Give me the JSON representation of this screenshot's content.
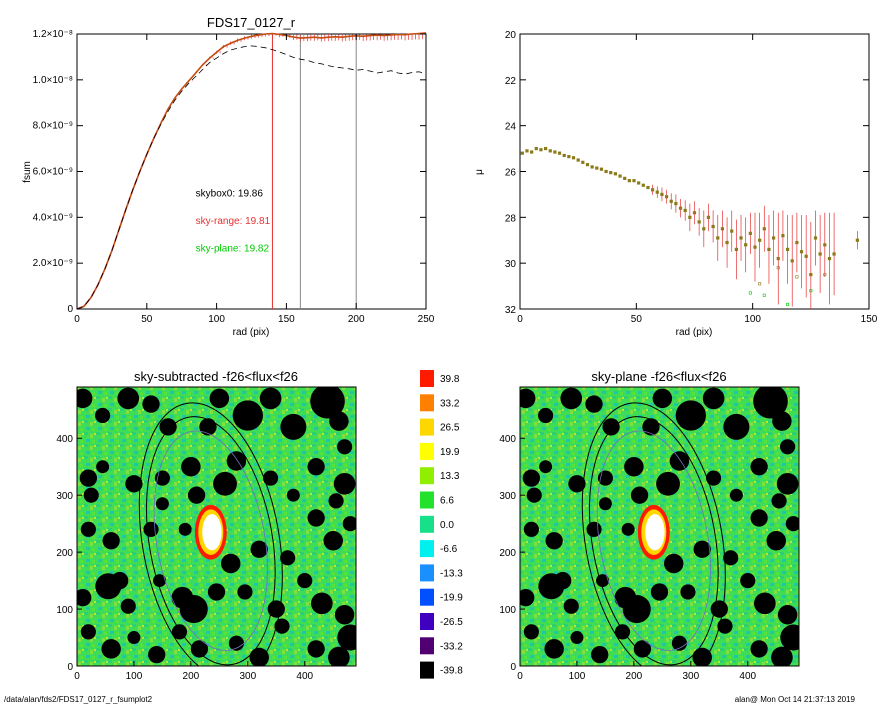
{
  "footer": {
    "left": "/data/alan/fds2/FDS17_0127_r_fsumplot2",
    "right": "alan@  Mon Oct 14 21:37:13 2019"
  },
  "colors": {
    "total": "#b45a00",
    "range": "#e53030",
    "plane": "#00cc00",
    "skybox": "#000000",
    "marker": "#8a7a1a"
  },
  "chart_data": [
    {
      "type": "line",
      "title": "FDS17_0127_r",
      "xlabel": "rad (pix)",
      "ylabel": "fsum",
      "xlim": [
        0,
        250
      ],
      "ylim": [
        0,
        1.2e-08
      ],
      "xticks": [
        0,
        50,
        100,
        150,
        200,
        250
      ],
      "yticks": [
        {
          "value": 0,
          "label": "0"
        },
        {
          "value": 2e-09,
          "label": "2.0×10⁻⁹"
        },
        {
          "value": 4e-09,
          "label": "4.0×10⁻⁹"
        },
        {
          "value": 6e-09,
          "label": "6.0×10⁻⁹"
        },
        {
          "value": 8e-09,
          "label": "8.0×10⁻⁹"
        },
        {
          "value": 1e-08,
          "label": "1.0×10⁻⁸"
        },
        {
          "value": 1.2e-08,
          "label": "1.2×10⁻⁸"
        }
      ],
      "vlines": [
        {
          "x": 140,
          "color": "#e53030"
        },
        {
          "x": 160,
          "color": "#888888"
        },
        {
          "x": 200,
          "color": "#888888"
        }
      ],
      "annotations": [
        {
          "text": "skybox0: 19.86",
          "color": "#000000",
          "x": 85,
          "y": 4.9e-09
        },
        {
          "text": "sky-range: 19.81",
          "color": "#e53030",
          "x": 85,
          "y": 3.7e-09
        },
        {
          "text": "sky-plane: 19.82",
          "color": "#00cc00",
          "x": 85,
          "y": 2.5e-09
        }
      ],
      "series": [
        {
          "x": [
            0,
            5,
            10,
            15,
            20,
            25,
            30,
            35,
            40,
            45,
            50,
            55,
            60,
            65,
            70,
            75,
            80,
            85,
            90,
            95,
            100,
            105,
            110,
            115,
            120,
            125,
            130,
            135,
            140,
            145,
            150,
            155,
            160,
            165,
            170,
            175,
            180,
            185,
            190,
            195,
            200,
            205,
            210,
            215,
            220,
            225,
            230,
            235,
            240,
            245,
            250
          ],
          "y": [
            0,
            1.2e-10,
            5e-10,
            1.05e-09,
            1.75e-09,
            2.55e-09,
            3.45e-09,
            4.35e-09,
            5.2e-09,
            6e-09,
            6.75e-09,
            7.45e-09,
            8.1e-09,
            8.7e-09,
            9.2e-09,
            9.6e-09,
            9.95e-09,
            1.03e-08,
            1.065e-08,
            1.095e-08,
            1.12e-08,
            1.145e-08,
            1.16e-08,
            1.172e-08,
            1.182e-08,
            1.19e-08,
            1.195e-08,
            1.2e-08,
            1.202e-08,
            1.198e-08,
            1.193e-08,
            1.187e-08,
            1.182e-08,
            1.184e-08,
            1.186e-08,
            1.183e-08,
            1.186e-08,
            1.188e-08,
            1.186e-08,
            1.19e-08,
            1.192e-08,
            1.19e-08,
            1.193e-08,
            1.195e-08,
            1.193e-08,
            1.196e-08,
            1.198e-08,
            1.197e-08,
            1.2e-08,
            1.202e-08,
            1.205e-08
          ],
          "style": "solid",
          "color": "#b45a00",
          "errors": true
        },
        {
          "x": [
            0,
            5,
            10,
            15,
            20,
            25,
            30,
            35,
            40,
            45,
            50,
            55,
            60,
            65,
            70,
            75,
            80,
            85,
            90,
            95,
            100,
            105,
            110,
            115,
            120,
            125,
            130,
            135,
            140,
            145,
            150,
            155,
            160,
            165,
            170,
            175,
            180,
            185,
            190,
            195,
            200,
            205,
            210,
            215,
            220,
            225,
            230,
            235,
            240,
            245,
            250
          ],
          "y": [
            0,
            1.2e-10,
            5e-10,
            1.05e-09,
            1.75e-09,
            2.55e-09,
            3.45e-09,
            4.35e-09,
            5.2e-09,
            6e-09,
            6.75e-09,
            7.45e-09,
            8.05e-09,
            8.6e-09,
            9.1e-09,
            9.5e-09,
            9.85e-09,
            1.015e-08,
            1.045e-08,
            1.075e-08,
            1.095e-08,
            1.115e-08,
            1.13e-08,
            1.138e-08,
            1.145e-08,
            1.148e-08,
            1.145e-08,
            1.14e-08,
            1.132e-08,
            1.122e-08,
            1.11e-08,
            1.098e-08,
            1.09e-08,
            1.085e-08,
            1.075e-08,
            1.07e-08,
            1.062e-08,
            1.055e-08,
            1.052e-08,
            1.048e-08,
            1.042e-08,
            1.045e-08,
            1.038e-08,
            1.03e-08,
            1.035e-08,
            1.04e-08,
            1.03e-08,
            1.025e-08,
            1.032e-08,
            1.035e-08,
            1.025e-08
          ],
          "style": "dashed",
          "color": "#000000",
          "errors": false
        }
      ]
    },
    {
      "type": "scatter",
      "title": "",
      "xlabel": "rad (pix)",
      "ylabel": "μ",
      "xlim": [
        0,
        150
      ],
      "ylim": [
        32,
        20
      ],
      "xticks": [
        0,
        50,
        100,
        150
      ],
      "yticks": [
        20,
        22,
        24,
        26,
        28,
        30,
        32
      ],
      "points": {
        "x": [
          1,
          3,
          5,
          7,
          9,
          11,
          13,
          15,
          17,
          19,
          21,
          23,
          25,
          27,
          29,
          31,
          33,
          35,
          37,
          39,
          41,
          43,
          45,
          47,
          49,
          51,
          53,
          55,
          57,
          59,
          61,
          63,
          65,
          67,
          69,
          71,
          73,
          75,
          77,
          79,
          81,
          83,
          85,
          87,
          89,
          91,
          93,
          95,
          97,
          99,
          101,
          103,
          105,
          107,
          109,
          111,
          113,
          115,
          117,
          119,
          121,
          123,
          125,
          127,
          129,
          131,
          133,
          135,
          145
        ],
        "y": [
          25.2,
          25.1,
          25.15,
          25.0,
          25.05,
          25.0,
          25.1,
          25.15,
          25.2,
          25.3,
          25.35,
          25.4,
          25.5,
          25.6,
          25.7,
          25.8,
          25.85,
          25.9,
          26.0,
          26.05,
          26.1,
          26.2,
          26.3,
          26.4,
          26.4,
          26.5,
          26.6,
          26.7,
          26.8,
          26.9,
          27.0,
          27.1,
          27.3,
          27.4,
          27.6,
          27.7,
          28.0,
          27.8,
          28.2,
          28.5,
          28.0,
          28.4,
          28.9,
          28.5,
          29.1,
          28.6,
          29.4,
          28.9,
          29.2,
          28.7,
          29.3,
          29.0,
          28.5,
          29.4,
          28.9,
          29.8,
          28.8,
          29.4,
          29.9,
          29.1,
          29.5,
          29.7,
          30.5,
          28.9,
          29.6,
          29.2,
          29.8,
          29.6,
          29.0
        ],
        "err": [
          0.05,
          0.05,
          0.05,
          0.05,
          0.05,
          0.05,
          0.06,
          0.06,
          0.06,
          0.06,
          0.07,
          0.07,
          0.08,
          0.08,
          0.09,
          0.1,
          0.1,
          0.1,
          0.12,
          0.12,
          0.12,
          0.14,
          0.15,
          0.15,
          0.16,
          0.18,
          0.2,
          0.2,
          0.22,
          0.25,
          0.3,
          0.3,
          0.35,
          0.4,
          0.4,
          0.45,
          0.6,
          0.5,
          0.6,
          0.8,
          0.6,
          0.7,
          1.0,
          0.8,
          1.1,
          0.9,
          1.3,
          1.0,
          1.2,
          0.9,
          1.5,
          1.2,
          1.0,
          1.5,
          1.2,
          2.0,
          1.1,
          1.5,
          2.0,
          1.3,
          1.6,
          1.8,
          2.3,
          1.2,
          1.7,
          1.4,
          2.0,
          1.8,
          0.4
        ]
      },
      "outliers": {
        "x": [
          99,
          103,
          105,
          111,
          115,
          119,
          125,
          131
        ],
        "y": [
          31.3,
          30.9,
          31.4,
          30.2,
          31.8,
          30.6,
          31.2,
          30.5
        ],
        "color": "#00cc00"
      }
    },
    {
      "type": "heatmap",
      "title": "sky-subtracted -f26<flux<f26",
      "xlim": [
        0,
        490
      ],
      "ylim": [
        0,
        490
      ],
      "xticks": [
        0,
        100,
        200,
        300,
        400
      ],
      "yticks": [
        0,
        100,
        200,
        300,
        400
      ],
      "ellipse": {
        "cx": 235,
        "cy": 220,
        "rx_inner": 95,
        "ry_inner": 195,
        "rx_outer": 120,
        "ry_outer": 245,
        "angle": 10
      }
    },
    {
      "type": "heatmap",
      "title": "sky-plane -f26<flux<f26",
      "xlim": [
        0,
        490
      ],
      "ylim": [
        0,
        490
      ],
      "xticks": [
        0,
        100,
        200,
        300,
        400
      ],
      "yticks": [
        0,
        100,
        200,
        300,
        400
      ],
      "ellipse": {
        "cx": 235,
        "cy": 220,
        "rx_inner": 95,
        "ry_inner": 195,
        "rx_outer": 120,
        "ry_outer": 245,
        "angle": 10
      }
    }
  ],
  "colorbar": {
    "labels": [
      "39.8",
      "33.2",
      "26.5",
      "19.9",
      "13.3",
      "6.6",
      "0.0",
      "-6.6",
      "-13.3",
      "-19.9",
      "-26.5",
      "-33.2",
      "-39.8"
    ],
    "colors": [
      "#ff1a00",
      "#ff7f00",
      "#ffd700",
      "#ffff00",
      "#90ee00",
      "#22e22b",
      "#18e08a",
      "#00f0f0",
      "#1a90ff",
      "#0050ff",
      "#4000c0",
      "#500070",
      "#000000"
    ]
  }
}
